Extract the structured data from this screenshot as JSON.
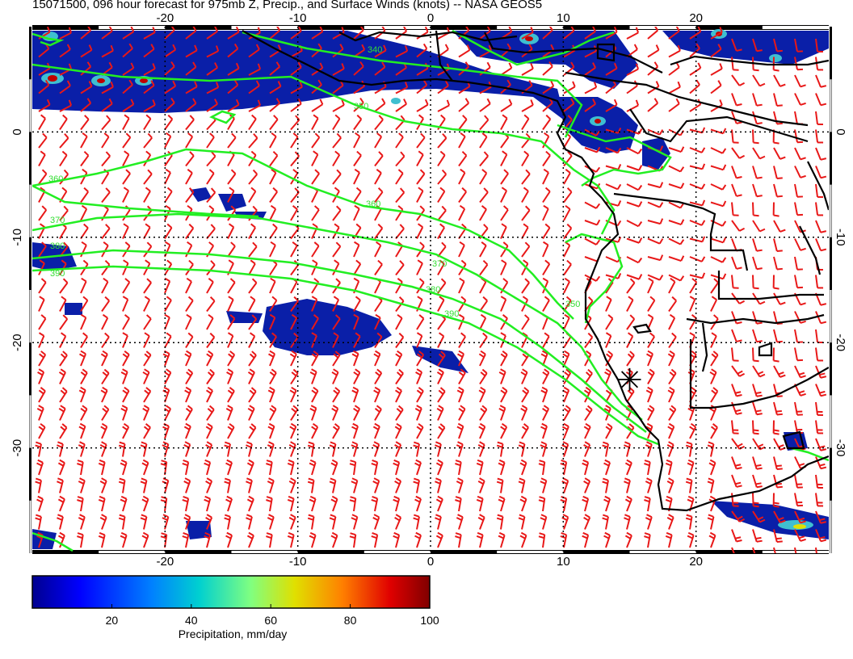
{
  "title": "15071500, 096 hour forecast for 975mb Z, Precip., and Surface Winds (knots) -- NASA GEOS5",
  "map": {
    "lon_range": [
      -30,
      30
    ],
    "lat_range": [
      -40,
      10
    ],
    "lon_ticks": [
      "-20",
      "-10",
      "0",
      "10",
      "20"
    ],
    "lat_ticks": [
      "0",
      "-10",
      "-20",
      "-30"
    ],
    "grid": "dotted",
    "colors": {
      "wind_barbs": "#e81818",
      "contours": "#22ee22",
      "coastlines": "#000000",
      "precip_low": "#00008f",
      "precip_high": "#800000"
    }
  },
  "contours": {
    "labels": [
      "340",
      "350",
      "360",
      "360",
      "370",
      "370",
      "380",
      "380",
      "390",
      "390",
      "350"
    ]
  },
  "marker": {
    "icon": "asterisk-marker-icon",
    "lon": 15,
    "lat": -23.5
  },
  "colorbar": {
    "ticks": [
      "20",
      "40",
      "60",
      "80",
      "100"
    ],
    "label": "Precipitation, mm/day",
    "range": [
      0,
      100
    ],
    "colors": [
      "#00008f",
      "#0000ff",
      "#0080ff",
      "#00d0d0",
      "#80ff80",
      "#e0e000",
      "#ff8000",
      "#e00000",
      "#800000"
    ]
  }
}
